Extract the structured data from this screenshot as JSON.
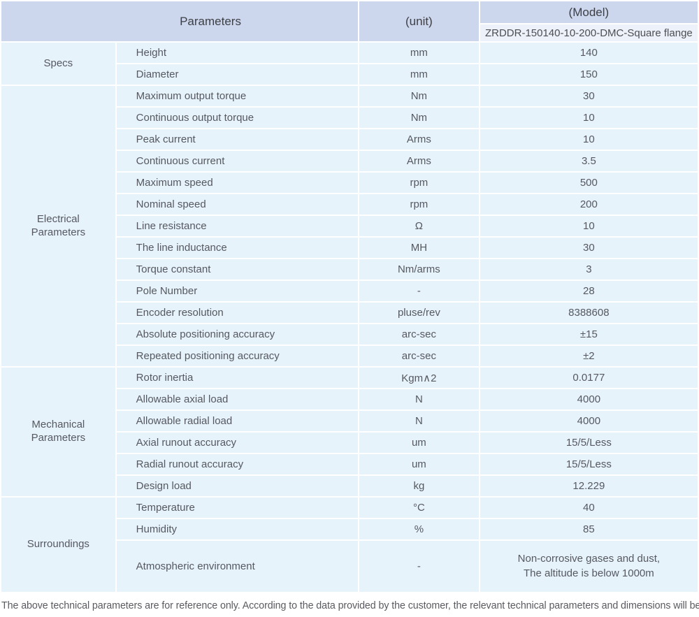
{
  "theme": {
    "header_bg": "#ccd7ee",
    "model_row_bg": "#edf1f9",
    "body_row_bg": "#e7f3fb",
    "separator": "#ffffff",
    "text_color": "#565860"
  },
  "header": {
    "parameters_label": "Parameters",
    "unit_label": "(unit)",
    "model_label": "(Model)",
    "model_value": "ZRDDR-150140-10-200-DMC-Square flange"
  },
  "sections": [
    {
      "label": "Specs",
      "rows": [
        {
          "param": "Height",
          "unit": "mm",
          "value": "140"
        },
        {
          "param": "Diameter",
          "unit": "mm",
          "value": "150"
        }
      ]
    },
    {
      "label": "Electrical\nParameters",
      "rows": [
        {
          "param": "Maximum output torque",
          "unit": "Nm",
          "value": "30"
        },
        {
          "param": "Continuous output torque",
          "unit": "Nm",
          "value": "10"
        },
        {
          "param": "Peak current",
          "unit": "Arms",
          "value": "10"
        },
        {
          "param": "Continuous current",
          "unit": "Arms",
          "value": "3.5"
        },
        {
          "param": "Maximum speed",
          "unit": "rpm",
          "value": "500"
        },
        {
          "param": "Nominal speed",
          "unit": "rpm",
          "value": "200"
        },
        {
          "param": "Line resistance",
          "unit": "Ω",
          "value": "10"
        },
        {
          "param": "The line inductance",
          "unit": "MH",
          "value": "30"
        },
        {
          "param": "Torque constant",
          "unit": "Nm/arms",
          "value": "3"
        },
        {
          "param": "Pole Number",
          "unit": "-",
          "value": "28"
        },
        {
          "param": "Encoder resolution",
          "unit": "pluse/rev",
          "value": "8388608"
        },
        {
          "param": "Absolute positioning accuracy",
          "unit": "arc-sec",
          "value": "±15"
        },
        {
          "param": "Repeated positioning accuracy",
          "unit": "arc-sec",
          "value": "±2"
        }
      ]
    },
    {
      "label": "Mechanical\nParameters",
      "rows": [
        {
          "param": "Rotor inertia",
          "unit": "Kgm∧2",
          "value": "0.0177"
        },
        {
          "param": "Allowable axial load",
          "unit": "N",
          "value": "4000"
        },
        {
          "param": "Allowable radial load",
          "unit": "N",
          "value": "4000"
        },
        {
          "param": "Axial runout accuracy",
          "unit": "um",
          "value": "15/5/Less"
        },
        {
          "param": "Radial runout accuracy",
          "unit": "um",
          "value": "15/5/Less"
        },
        {
          "param": "Design load",
          "unit": "kg",
          "value": "12.229"
        }
      ]
    },
    {
      "label": "Surroundings",
      "rows": [
        {
          "param": "Temperature",
          "unit": "°C",
          "value": "40"
        },
        {
          "param": "Humidity",
          "unit": "%",
          "value": "85"
        },
        {
          "param": "Atmospheric environment",
          "unit": "-",
          "value": "Non-corrosive gases and dust,\nThe altitude is below 1000m"
        }
      ]
    }
  ],
  "footnote": "The above technical parameters are for reference only. According to the data provided by the customer, the relevant technical parameters and dimensions will be issued."
}
